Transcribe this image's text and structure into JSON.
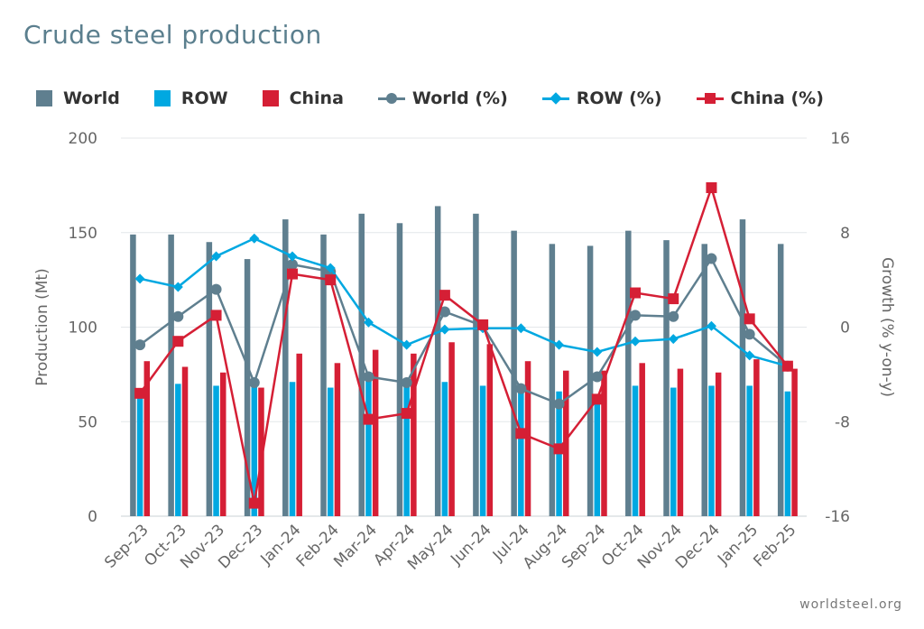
{
  "title": "Crude steel production",
  "source": "worldsteel.org",
  "legend": [
    {
      "label": "World",
      "kind": "bar",
      "color": "#5f7f8f"
    },
    {
      "label": "ROW",
      "kind": "bar",
      "color": "#00a8e1"
    },
    {
      "label": "China",
      "kind": "bar",
      "color": "#d51f35"
    },
    {
      "label": "World (%)",
      "kind": "line-circle",
      "color": "#5f7f8f"
    },
    {
      "label": "ROW (%)",
      "kind": "line-diamond",
      "color": "#00a8e1"
    },
    {
      "label": "China (%)",
      "kind": "line-square",
      "color": "#d51f35"
    }
  ],
  "chart_data": {
    "type": "bar",
    "title": "Crude steel production",
    "categories": [
      "Sep-23",
      "Oct-23",
      "Nov-23",
      "Dec-23",
      "Jan-24",
      "Feb-24",
      "Mar-24",
      "Apr-24",
      "May-24",
      "Jun-24",
      "Jul-24",
      "Aug-24",
      "Sep-24",
      "Oct-24",
      "Nov-24",
      "Dec-24",
      "Jan-25",
      "Feb-25"
    ],
    "ylabel": "Production (Mt)",
    "ylim": [
      0,
      200
    ],
    "y_ticks": [
      0,
      50,
      100,
      150,
      200
    ],
    "y2label": "Growth (% y-on-y)",
    "y2lim": [
      -16,
      16
    ],
    "y2_ticks": [
      -16,
      -8,
      0,
      8,
      16
    ],
    "grid": true,
    "legend_position": "top",
    "series": [
      {
        "name": "World",
        "type": "bar",
        "axis": "left",
        "color": "#5f7f8f",
        "values": [
          149,
          149,
          145,
          136,
          157,
          149,
          160,
          155,
          164,
          160,
          151,
          144,
          143,
          151,
          146,
          144,
          157,
          144
        ]
      },
      {
        "name": "ROW",
        "type": "bar",
        "axis": "left",
        "color": "#00a8e1",
        "values": [
          67,
          70,
          69,
          70,
          71,
          68,
          73,
          71,
          71,
          69,
          69,
          66,
          62,
          69,
          68,
          69,
          69,
          66
        ]
      },
      {
        "name": "China",
        "type": "bar",
        "axis": "left",
        "color": "#d51f35",
        "values": [
          82,
          79,
          76,
          68,
          86,
          81,
          88,
          86,
          92,
          91,
          82,
          77,
          77,
          81,
          78,
          76,
          83,
          78
        ]
      },
      {
        "name": "World (%)",
        "type": "line",
        "marker": "circle",
        "axis": "right",
        "color": "#5f7f8f",
        "values": [
          -1.5,
          0.9,
          3.2,
          -4.7,
          5.3,
          4.7,
          -4.2,
          -4.7,
          1.3,
          0.1,
          -5.2,
          -6.5,
          -4.2,
          1.0,
          0.9,
          5.8,
          -0.6,
          -3.3
        ]
      },
      {
        "name": "ROW (%)",
        "type": "line",
        "marker": "diamond",
        "axis": "right",
        "color": "#00a8e1",
        "values": [
          4.1,
          3.4,
          6.0,
          7.5,
          6.0,
          5.0,
          0.4,
          -1.5,
          -0.2,
          -0.1,
          -0.1,
          -1.5,
          -2.1,
          -1.2,
          -1.0,
          0.1,
          -2.4,
          -3.3
        ]
      },
      {
        "name": "China (%)",
        "type": "line",
        "marker": "square",
        "axis": "right",
        "color": "#d51f35",
        "values": [
          -5.6,
          -1.2,
          1.0,
          -14.9,
          4.5,
          4.0,
          -7.8,
          -7.3,
          2.7,
          0.2,
          -9.0,
          -10.3,
          -6.1,
          2.9,
          2.4,
          11.8,
          0.7,
          -3.3
        ]
      }
    ]
  }
}
